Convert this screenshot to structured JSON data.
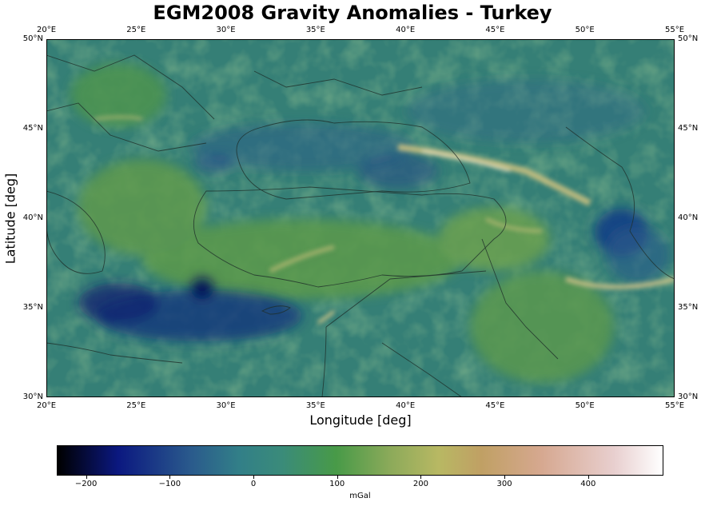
{
  "title": "EGM2008 Gravity Anomalies - Turkey",
  "x_axis": {
    "label": "Longitude [deg]",
    "ticks": [
      "20°E",
      "25°E",
      "30°E",
      "35°E",
      "40°E",
      "45°E",
      "50°E",
      "55°E"
    ],
    "range": [
      20,
      55
    ]
  },
  "y_axis": {
    "label": "Latitude [deg]",
    "ticks": [
      "30°N",
      "35°N",
      "40°N",
      "45°N",
      "50°N"
    ],
    "range": [
      30,
      50
    ]
  },
  "colorbar": {
    "label": "mGal",
    "min": -235,
    "max": 490,
    "ticks": [
      -200,
      -100,
      0,
      100,
      200,
      300,
      400
    ],
    "tick_labels": [
      "−200",
      "−100",
      "0",
      "100",
      "200",
      "300",
      "400"
    ],
    "colors": [
      "#000000",
      "#0b1880",
      "#2a5a8c",
      "#327f88",
      "#3a8b7a",
      "#489a48",
      "#8caa5a",
      "#b8b863",
      "#c0a064",
      "#d6a890",
      "#e8cfcf",
      "#ffffff"
    ]
  },
  "colors": {
    "base_field": "#357f76",
    "coast": "#1f2f2a"
  }
}
